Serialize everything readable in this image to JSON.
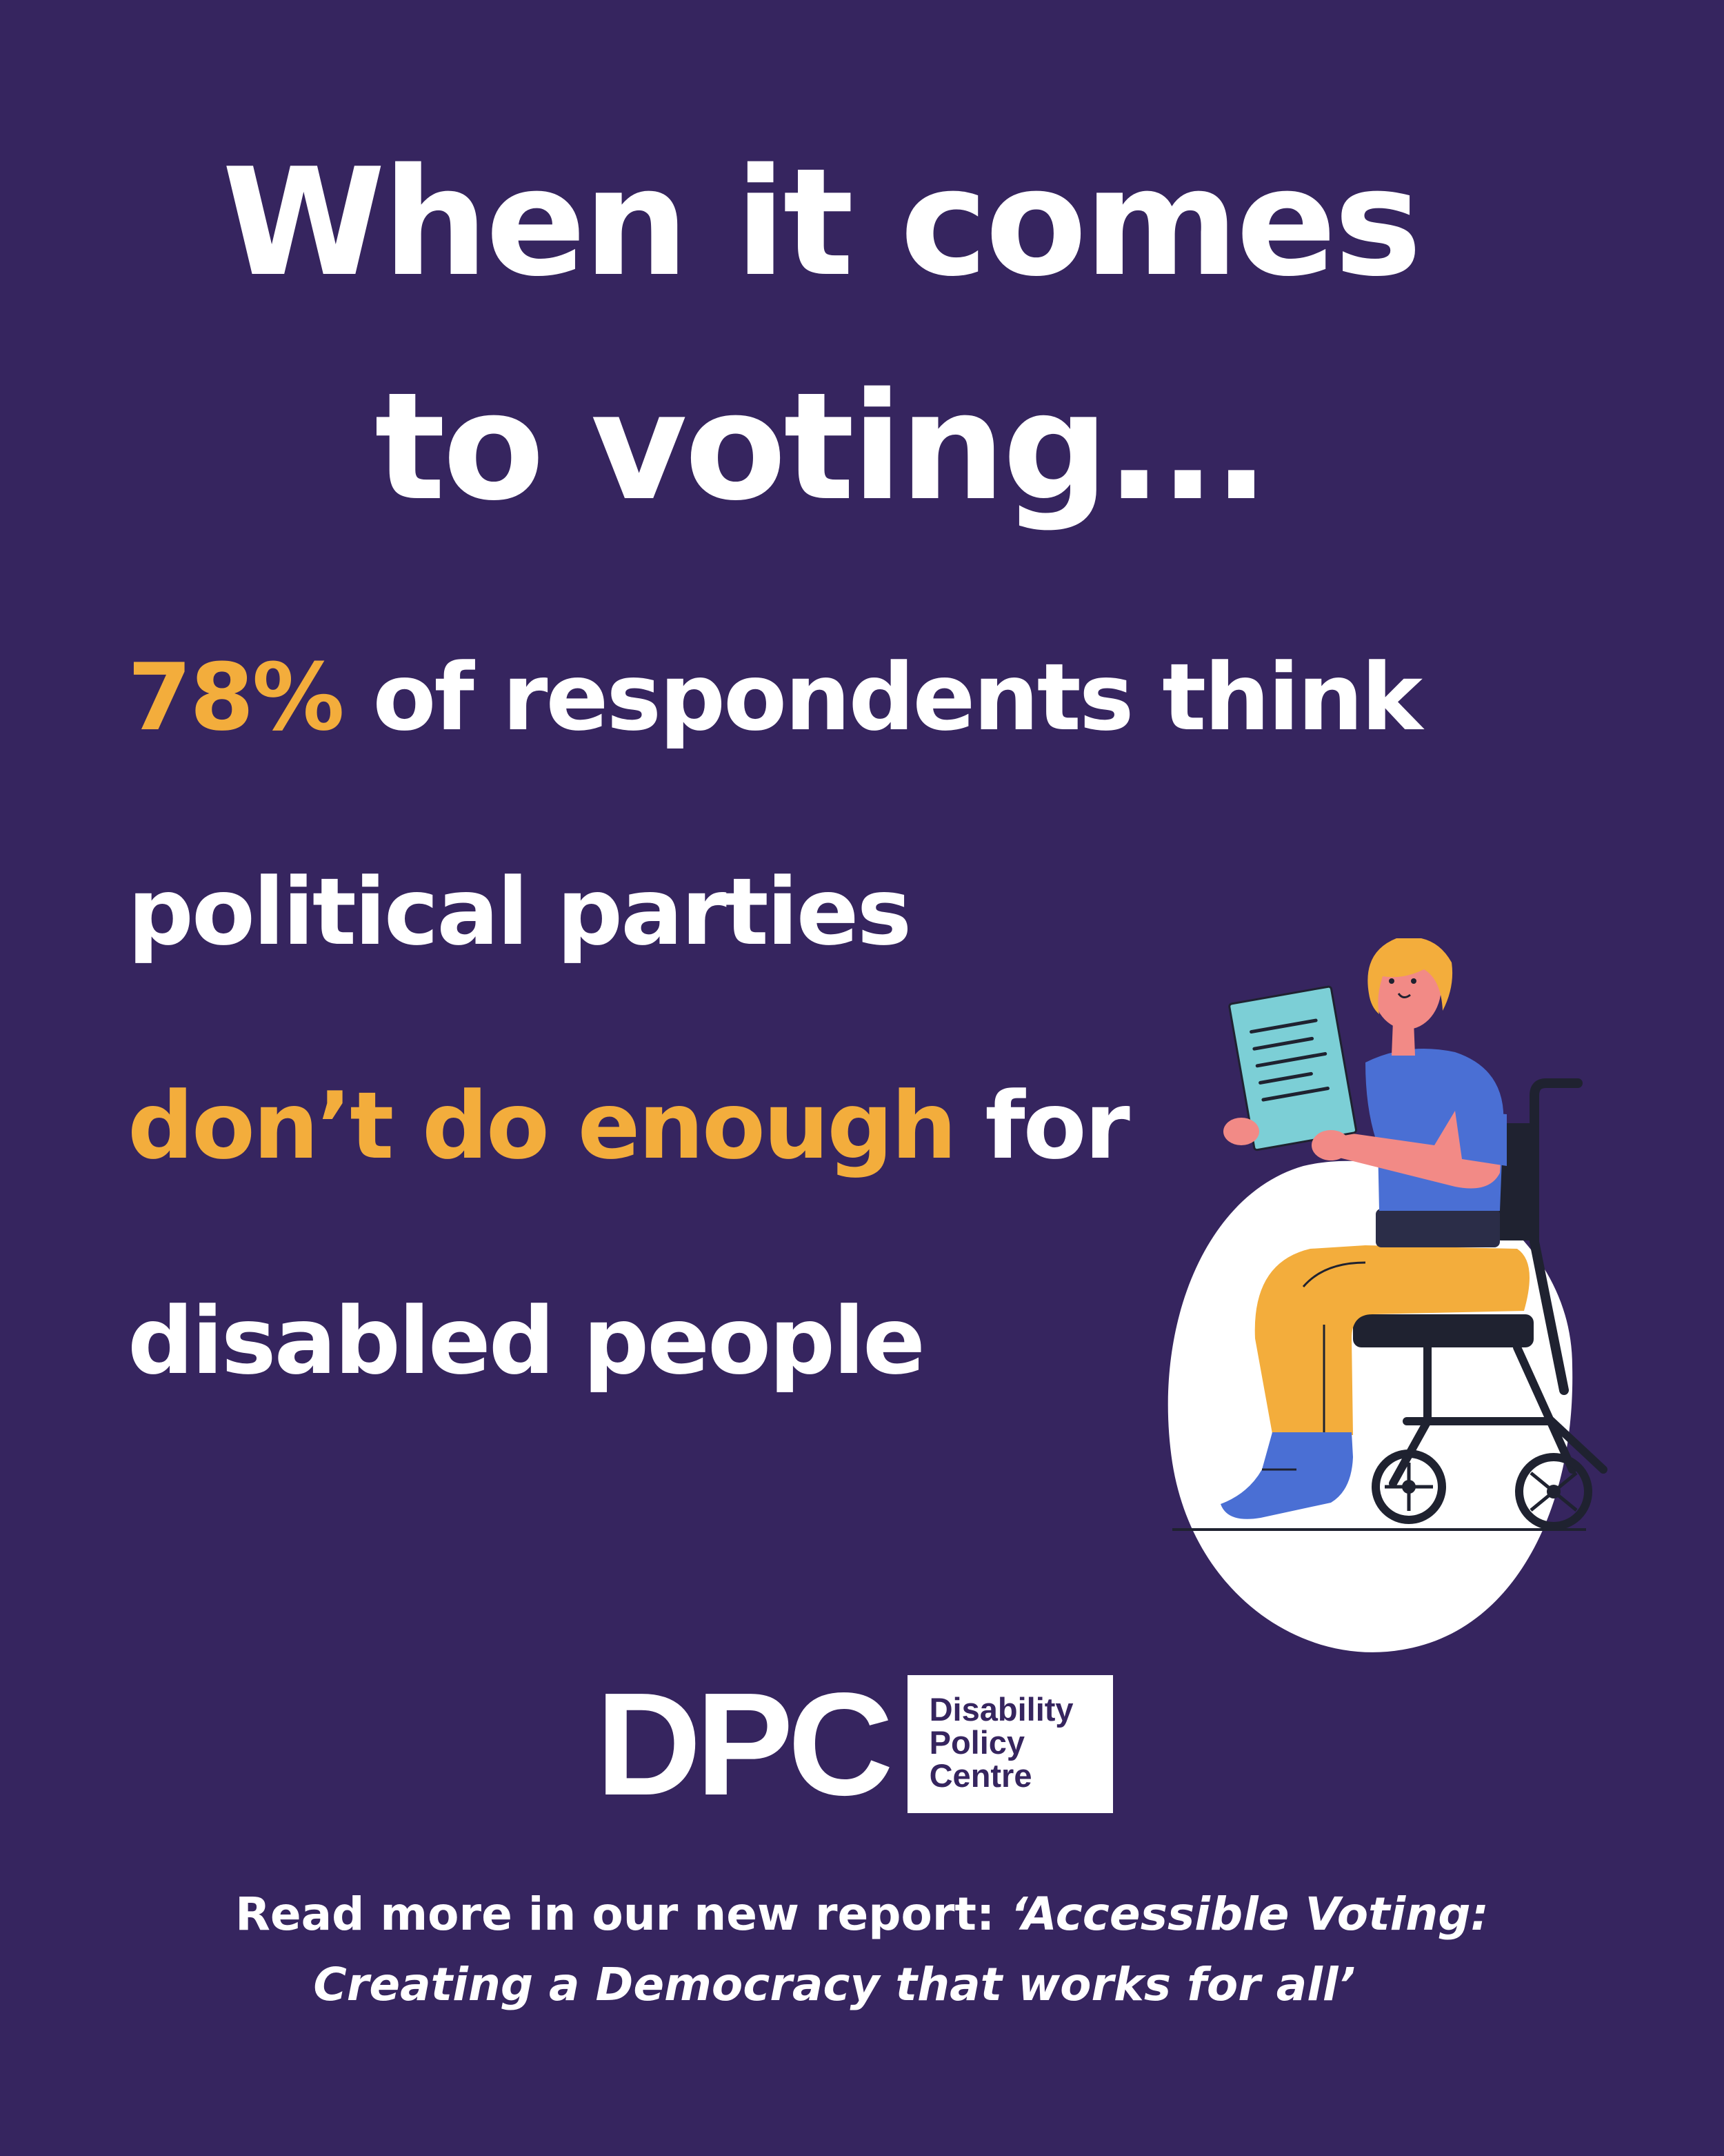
{
  "headline": {
    "line1": "When it comes",
    "line2": "to voting..."
  },
  "statement": {
    "percent": "78%",
    "line1_rest": "of respondents think",
    "line2": "political parties",
    "emphasis": "don’t do enough",
    "line3_rest": "for",
    "line4": "disabled people"
  },
  "logo": {
    "mark": "DPC",
    "name_line1": "Disability",
    "name_line2": "Policy",
    "name_line3": "Centre"
  },
  "footer": {
    "lead": "Read more in our new report: ",
    "title_part1": "‘Accessible Voting:",
    "title_part2": "Creating a Democracy that works for all’"
  },
  "colors": {
    "background": "#36255f",
    "accent": "#f3ad3c",
    "text": "#ffffff"
  },
  "icons": {
    "illustration": "person-in-wheelchair-reading-illustration"
  }
}
